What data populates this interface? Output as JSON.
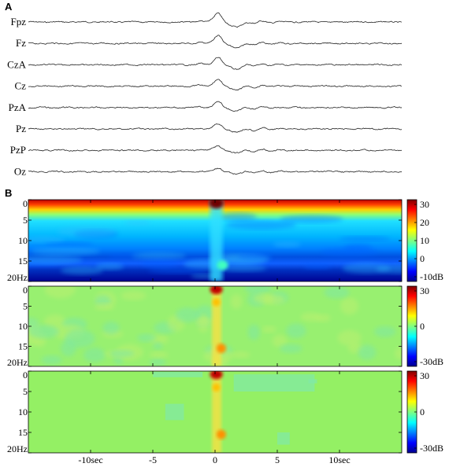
{
  "panel_labels": {
    "a": "A",
    "b": "B"
  },
  "chart_data": [
    {
      "type": "line",
      "panel": "A",
      "description_units": "EEG traces, time axis shared with panel B (seconds)",
      "channels": [
        "Fpz",
        "Fz",
        "CzA",
        "Cz",
        "PzA",
        "Pz",
        "PzP",
        "Oz"
      ],
      "event_time": 0,
      "xlim": [
        -15,
        15
      ]
    },
    {
      "type": "heatmap",
      "panel": "B",
      "x_tick_labels": [
        "-10sec",
        "-5",
        "0",
        "5",
        "10sec"
      ],
      "x_ticks": [
        -10,
        -5,
        0,
        5,
        10
      ],
      "xlim": [
        -15,
        15
      ],
      "y_tick_labels": [
        "0",
        "5",
        "10",
        "15",
        "20Hz"
      ],
      "y_ticks": [
        0,
        5,
        10,
        15,
        20
      ],
      "ylim": [
        0,
        20
      ],
      "subplots": [
        {
          "colorbar_ticks": [
            "30",
            "20",
            "10",
            "0",
            "-10dB"
          ],
          "crange": [
            -10,
            30
          ]
        },
        {
          "colorbar_ticks": [
            "30",
            "0",
            "-30dB"
          ],
          "crange": [
            -30,
            30
          ]
        },
        {
          "colorbar_ticks": [
            "30",
            "0",
            "-30dB"
          ],
          "crange": [
            -30,
            30
          ]
        }
      ]
    }
  ]
}
